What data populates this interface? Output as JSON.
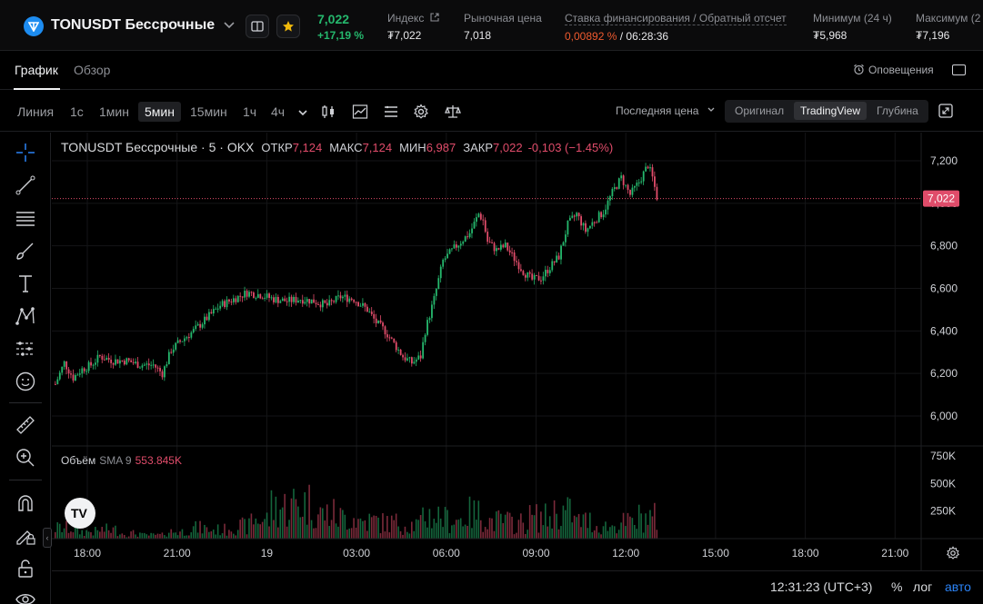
{
  "ticker": {
    "symbol": "TONUSDT Бессрочные",
    "last": "7,022",
    "change": "+17,19 %",
    "stats": [
      {
        "label": "Индекс",
        "value": "₮7,022"
      },
      {
        "label": "Рыночная цена",
        "value": "7,018"
      },
      {
        "label": "Ставка финансирования / Обратный отсчет",
        "value_rate": "0,00892 %",
        "value_rest": " / 06:28:36"
      },
      {
        "label": "Минимум (24 ч)",
        "value": "₮5,968"
      },
      {
        "label": "Максимум (2",
        "value": "₮7,196"
      }
    ]
  },
  "tabs": [
    {
      "label": "График"
    },
    {
      "label": "Обзор"
    }
  ],
  "alerts_label": "Оповещения",
  "timeframes": [
    "Линия",
    "1с",
    "1мин",
    "5мин",
    "15мин",
    "1ч",
    "4ч"
  ],
  "selected_timeframe": "5мин",
  "price_source": "Последняя цена",
  "view_modes": [
    "Оригинал",
    "TradingView",
    "Глубина"
  ],
  "selected_view": "TradingView",
  "legend": {
    "name": "TONUSDT Бессрочные · 5 · OKX",
    "open_label": "ОТКР",
    "open": "7,124",
    "high_label": "МАКС",
    "high": "7,124",
    "low_label": "МИН",
    "low": "6,987",
    "close_label": "ЗАКР",
    "close": "7,022",
    "change": "-0,103 (−1.45%)"
  },
  "volume_legend": {
    "label": "Объём",
    "sma": "SMA 9",
    "value": "553.845K"
  },
  "footer": {
    "time": "12:31:23 (UTC+3)",
    "percent": "%",
    "log": "лог",
    "auto": "авто"
  },
  "colors": {
    "up": "#25b86d",
    "down": "#e04c6a",
    "accent": "#2b83f6"
  },
  "chart_data": {
    "type": "candlestick",
    "price_axis_ticks": [
      "7,200",
      "7,000",
      "6,800",
      "6,600",
      "6,400",
      "6,200",
      "6,000"
    ],
    "price_tick_values": [
      7.2,
      7.0,
      6.8,
      6.6,
      6.4,
      6.2,
      6.0
    ],
    "last_price_label": "7,022",
    "last_price": 7.022,
    "volume_axis_ticks": [
      "750K",
      "500K",
      "250K"
    ],
    "volume_tick_values": [
      750,
      500,
      250
    ],
    "time_axis_ticks": [
      "18:00",
      "21:00",
      "19",
      "03:00",
      "06:00",
      "09:00",
      "12:00",
      "15:00",
      "18:00",
      "21:00"
    ],
    "grid": true,
    "price_anchors": [
      [
        0,
        6.15
      ],
      [
        4,
        6.25
      ],
      [
        8,
        6.18
      ],
      [
        12,
        6.22
      ],
      [
        16,
        6.24
      ],
      [
        20,
        6.28
      ],
      [
        26,
        6.26
      ],
      [
        32,
        6.26
      ],
      [
        38,
        6.24
      ],
      [
        44,
        6.24
      ],
      [
        48,
        6.2
      ],
      [
        52,
        6.31
      ],
      [
        56,
        6.35
      ],
      [
        62,
        6.4
      ],
      [
        68,
        6.46
      ],
      [
        74,
        6.52
      ],
      [
        80,
        6.55
      ],
      [
        86,
        6.58
      ],
      [
        92,
        6.57
      ],
      [
        98,
        6.55
      ],
      [
        104,
        6.54
      ],
      [
        110,
        6.55
      ],
      [
        116,
        6.54
      ],
      [
        122,
        6.52
      ],
      [
        128,
        6.56
      ],
      [
        134,
        6.55
      ],
      [
        140,
        6.5
      ],
      [
        144,
        6.44
      ],
      [
        148,
        6.4
      ],
      [
        152,
        6.34
      ],
      [
        156,
        6.28
      ],
      [
        160,
        6.25
      ],
      [
        164,
        6.28
      ],
      [
        166,
        6.4
      ],
      [
        170,
        6.55
      ],
      [
        174,
        6.73
      ],
      [
        180,
        6.8
      ],
      [
        186,
        6.86
      ],
      [
        190,
        6.95
      ],
      [
        192,
        6.92
      ],
      [
        194,
        6.82
      ],
      [
        198,
        6.78
      ],
      [
        202,
        6.8
      ],
      [
        206,
        6.74
      ],
      [
        210,
        6.68
      ],
      [
        214,
        6.64
      ],
      [
        218,
        6.65
      ],
      [
        222,
        6.7
      ],
      [
        226,
        6.75
      ],
      [
        230,
        6.9
      ],
      [
        234,
        6.95
      ],
      [
        238,
        6.87
      ],
      [
        242,
        6.92
      ],
      [
        246,
        6.96
      ],
      [
        250,
        7.05
      ],
      [
        254,
        7.12
      ],
      [
        258,
        7.04
      ],
      [
        262,
        7.1
      ],
      [
        266,
        7.18
      ],
      [
        268,
        7.12
      ],
      [
        270,
        7.03
      ]
    ],
    "volume_levels": [
      0.3,
      0.2,
      0.25,
      0.15,
      0.1,
      0.2,
      0.3,
      0.25,
      0.35,
      0.55,
      0.9,
      1.0,
      0.7,
      0.6,
      0.5,
      0.45,
      0.4,
      0.65,
      0.55,
      0.7,
      0.5,
      0.45,
      0.6,
      0.75,
      0.5,
      0.35,
      0.45,
      0.6
    ]
  }
}
